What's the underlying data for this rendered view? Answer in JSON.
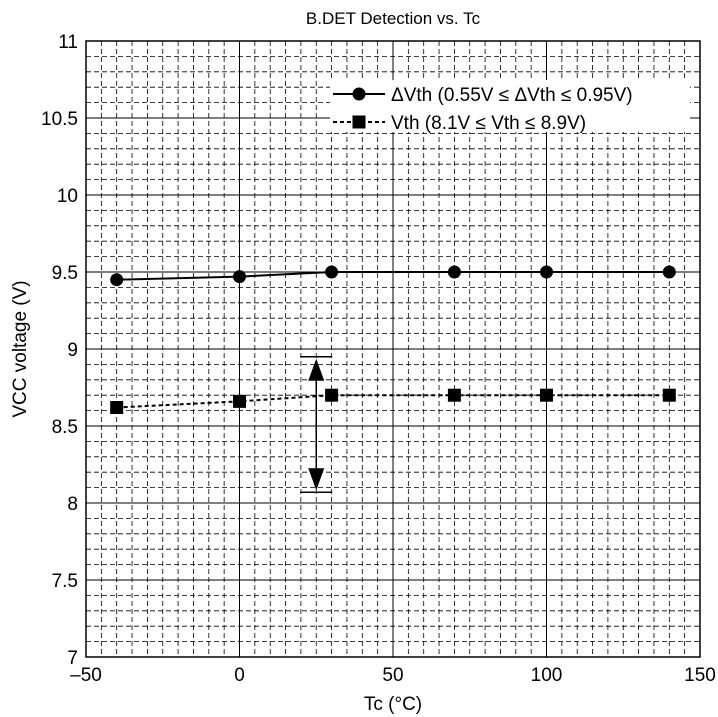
{
  "chart_data": {
    "type": "line",
    "title": "B.DET Detection vs. Tc",
    "xlabel": "Tc  (°C)",
    "ylabel": "VCC voltage  (V)",
    "xlim": [
      -50,
      150
    ],
    "ylim": [
      7,
      11
    ],
    "x_ticks": [
      -50,
      0,
      50,
      100,
      150
    ],
    "x_tick_labels": [
      "–50",
      "0",
      "50",
      "100",
      "150"
    ],
    "y_ticks": [
      7,
      7.5,
      8,
      8.5,
      9,
      9.5,
      10,
      10.5,
      11
    ],
    "y_tick_labels": [
      "7",
      "7.5",
      "8",
      "8.5",
      "9",
      "9.5",
      "10",
      "10.5",
      "11"
    ],
    "grid": true,
    "legend_position": "top-right",
    "series": [
      {
        "name": "ΔVth (0.55V ≤ ΔVth ≤ 0.95V)",
        "marker": "circle",
        "line_style": "solid",
        "x": [
          -40,
          0,
          30,
          70,
          100,
          140
        ],
        "y": [
          9.45,
          9.47,
          9.5,
          9.5,
          9.5,
          9.5
        ]
      },
      {
        "name": "Vth (8.1V ≤ Vth ≤ 8.9V)",
        "marker": "square",
        "line_style": "dashed",
        "x": [
          -40,
          0,
          30,
          70,
          100,
          140
        ],
        "y": [
          8.62,
          8.66,
          8.7,
          8.7,
          8.7,
          8.7
        ]
      }
    ],
    "annotations": [
      {
        "type": "double-arrow",
        "x": 25,
        "y_from": 8.07,
        "y_to": 8.95
      }
    ],
    "colors": {
      "line": "#000000",
      "grid": "#000000",
      "background": "#ffffff"
    }
  }
}
